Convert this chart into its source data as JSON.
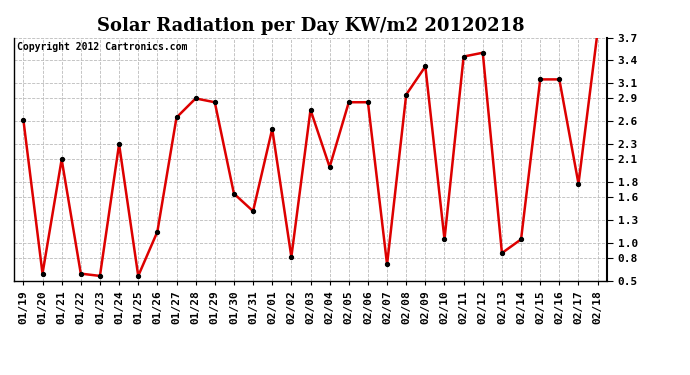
{
  "title": "Solar Radiation per Day KW/m2 20120218",
  "copyright": "Copyright 2012 Cartronics.com",
  "dates": [
    "01/19",
    "01/20",
    "01/21",
    "01/22",
    "01/23",
    "01/24",
    "01/25",
    "01/26",
    "01/27",
    "01/28",
    "01/29",
    "01/30",
    "01/31",
    "02/01",
    "02/02",
    "02/03",
    "02/04",
    "02/05",
    "02/06",
    "02/07",
    "02/08",
    "02/09",
    "02/10",
    "02/11",
    "02/12",
    "02/13",
    "02/14",
    "02/15",
    "02/16",
    "02/17",
    "02/18"
  ],
  "values": [
    2.62,
    0.6,
    2.1,
    0.6,
    0.57,
    2.3,
    0.57,
    1.15,
    2.65,
    2.9,
    2.85,
    1.65,
    1.42,
    2.5,
    0.82,
    2.75,
    2.0,
    2.85,
    2.85,
    0.72,
    2.95,
    3.32,
    1.05,
    3.45,
    3.5,
    0.87,
    1.05,
    3.15,
    3.15,
    1.78,
    3.78
  ],
  "line_color": "#dd0000",
  "marker_color": "#000000",
  "bg_color": "#ffffff",
  "grid_color": "#bbbbbb",
  "ylim": [
    0.5,
    3.7
  ],
  "yticks": [
    0.5,
    0.8,
    1.0,
    1.3,
    1.6,
    1.8,
    2.1,
    2.3,
    2.6,
    2.9,
    3.1,
    3.4,
    3.7
  ],
  "title_fontsize": 13,
  "copyright_fontsize": 7,
  "tick_fontsize": 8,
  "linewidth": 1.8
}
